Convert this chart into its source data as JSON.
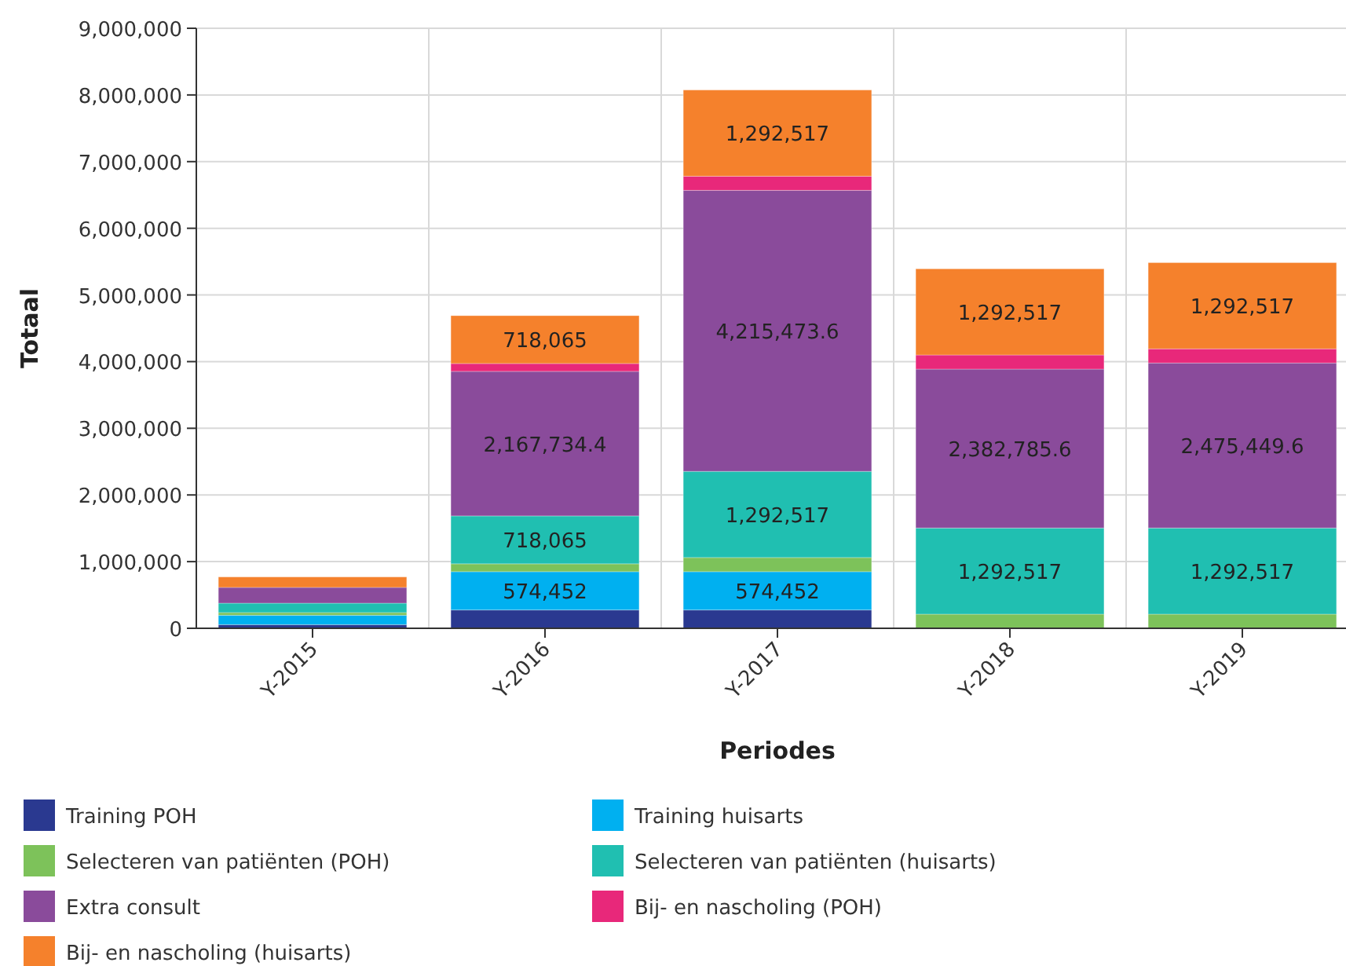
{
  "chart_data": {
    "type": "bar",
    "stacked": true,
    "xlabel": "Periodes",
    "ylabel": "Totaal",
    "categories": [
      "Y-2015",
      "Y-2016",
      "Y-2017",
      "Y-2018",
      "Y-2019"
    ],
    "ylim": [
      0,
      9000000
    ],
    "yticks": [
      {
        "value": 0,
        "label": "0"
      },
      {
        "value": 1000000,
        "label": "1,000,000"
      },
      {
        "value": 2000000,
        "label": "2,000,000"
      },
      {
        "value": 3000000,
        "label": "3,000,000"
      },
      {
        "value": 4000000,
        "label": "4,000,000"
      },
      {
        "value": 5000000,
        "label": "5,000,000"
      },
      {
        "value": 6000000,
        "label": "6,000,000"
      },
      {
        "value": 7000000,
        "label": "7,000,000"
      },
      {
        "value": 8000000,
        "label": "8,000,000"
      },
      {
        "value": 9000000,
        "label": "9,000,000"
      }
    ],
    "grid": true,
    "legend": "bottom",
    "series": [
      {
        "name": "Training POH",
        "color": "#2a3990",
        "values": [
          55000,
          275000,
          275000,
          0,
          0
        ]
      },
      {
        "name": "Training huisarts",
        "color": "#00b0f0",
        "values": [
          141000,
          574452,
          574452,
          0,
          0
        ],
        "value_labels": [
          null,
          "574,452",
          "574,452",
          null,
          null
        ]
      },
      {
        "name": "Selecteren van patiënten (POH)",
        "color": "#7dc25a",
        "values": [
          40000,
          118000,
          212000,
          212000,
          212000
        ]
      },
      {
        "name": "Selecteren van patiënten (huisarts)",
        "color": "#20bfb1",
        "values": [
          141000,
          718065,
          1292517,
          1292517,
          1292517
        ],
        "value_labels": [
          null,
          "718,065",
          "1,292,517",
          "1,292,517",
          "1,292,517"
        ]
      },
      {
        "name": "Extra consult",
        "color": "#8a4b9b",
        "values": [
          236000,
          2167734.4,
          4215473.6,
          2382785.6,
          2475449.6
        ],
        "value_labels": [
          null,
          "2,167,734.4",
          "4,215,473.6",
          "2,382,785.6",
          "2,475,449.6"
        ]
      },
      {
        "name": "Bij- en nascholing (POH)",
        "color": "#e8287a",
        "values": [
          0,
          118000,
          212000,
          212000,
          212000
        ]
      },
      {
        "name": "Bij- en nascholing (huisarts)",
        "color": "#f5812c",
        "values": [
          157000,
          718065,
          1292517,
          1292517,
          1292517
        ],
        "value_labels": [
          null,
          "718,065",
          "1,292,517",
          "1,292,517",
          "1,292,517"
        ]
      }
    ]
  }
}
